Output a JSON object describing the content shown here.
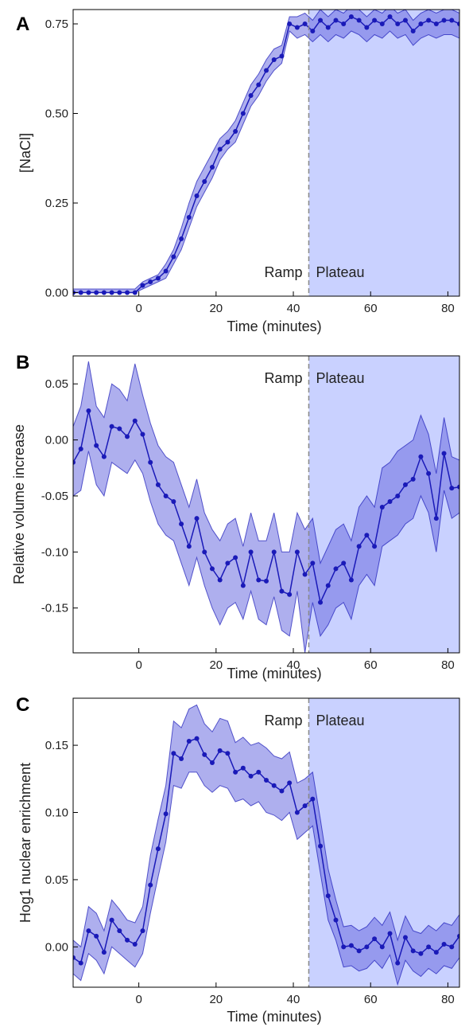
{
  "colors": {
    "line": "#1a1ab8",
    "band": "#6b6ee0",
    "plateau_shade": "#c9d1ff",
    "divider": "#888888"
  },
  "chart_data": [
    {
      "type": "line",
      "panel": "A",
      "xlabel": "Time (minutes)",
      "ylabel": "[NaCl]",
      "xlim": [
        -17,
        83
      ],
      "ylim": [
        -0.01,
        0.79
      ],
      "xticks": [
        0,
        20,
        40,
        60,
        80
      ],
      "xtick_labels": [
        "0",
        "20",
        "40",
        "60",
        "80"
      ],
      "yticks": [
        0,
        0.25,
        0.5,
        0.75
      ],
      "ytick_labels": [
        "0.00",
        "0.25",
        "0.50",
        "0.75"
      ],
      "plateau_start": 44,
      "regions": [
        "Ramp",
        "Plateau"
      ],
      "region_label_position": "bottom",
      "x": [
        -17,
        -15,
        -13,
        -11,
        -9,
        -7,
        -5,
        -3,
        -1,
        1,
        3,
        5,
        7,
        9,
        11,
        13,
        15,
        17,
        19,
        21,
        23,
        25,
        27,
        29,
        31,
        33,
        35,
        37,
        39,
        41,
        43,
        45,
        47,
        49,
        51,
        53,
        55,
        57,
        59,
        61,
        63,
        65,
        67,
        69,
        71,
        73,
        75,
        77,
        79,
        81,
        83
      ],
      "series": [
        {
          "mean": [
            0.0,
            0.0,
            0.0,
            0.0,
            0.0,
            0.0,
            0.0,
            0.0,
            0.0,
            0.02,
            0.03,
            0.04,
            0.06,
            0.1,
            0.15,
            0.21,
            0.27,
            0.31,
            0.35,
            0.4,
            0.42,
            0.45,
            0.5,
            0.55,
            0.58,
            0.62,
            0.65,
            0.66,
            0.75,
            0.74,
            0.75,
            0.73,
            0.76,
            0.74,
            0.76,
            0.75,
            0.77,
            0.76,
            0.74,
            0.76,
            0.75,
            0.77,
            0.75,
            0.76,
            0.73,
            0.75,
            0.76,
            0.75,
            0.76,
            0.76,
            0.75
          ],
          "lower": [
            0.0,
            0.0,
            0.0,
            0.0,
            0.0,
            0.0,
            0.0,
            0.0,
            0.0,
            0.01,
            0.02,
            0.03,
            0.04,
            0.08,
            0.12,
            0.18,
            0.24,
            0.28,
            0.32,
            0.37,
            0.4,
            0.42,
            0.47,
            0.52,
            0.55,
            0.59,
            0.62,
            0.64,
            0.73,
            0.71,
            0.72,
            0.7,
            0.72,
            0.7,
            0.72,
            0.71,
            0.73,
            0.72,
            0.7,
            0.72,
            0.71,
            0.73,
            0.71,
            0.72,
            0.69,
            0.71,
            0.72,
            0.71,
            0.72,
            0.72,
            0.71
          ],
          "upper": [
            0.01,
            0.01,
            0.01,
            0.01,
            0.01,
            0.01,
            0.01,
            0.01,
            0.01,
            0.03,
            0.04,
            0.05,
            0.08,
            0.12,
            0.18,
            0.25,
            0.31,
            0.35,
            0.39,
            0.43,
            0.45,
            0.48,
            0.53,
            0.58,
            0.61,
            0.65,
            0.68,
            0.69,
            0.77,
            0.77,
            0.78,
            0.76,
            0.79,
            0.77,
            0.79,
            0.78,
            0.8,
            0.79,
            0.77,
            0.79,
            0.78,
            0.8,
            0.78,
            0.79,
            0.76,
            0.78,
            0.79,
            0.78,
            0.79,
            0.79,
            0.78
          ]
        }
      ]
    },
    {
      "type": "line",
      "panel": "B",
      "xlabel": "Time (minutes)",
      "ylabel": "Relative volume increase",
      "xlim": [
        -17,
        83
      ],
      "ylim": [
        -0.19,
        0.075
      ],
      "xticks": [
        0,
        20,
        40,
        60,
        80
      ],
      "xtick_labels": [
        "0",
        "20",
        "40",
        "60",
        "80"
      ],
      "yticks": [
        0.05,
        0,
        -0.05,
        -0.1,
        -0.15
      ],
      "ytick_labels": [
        "0.05",
        "0.00",
        "-0.05",
        "-0.10",
        "-0.15"
      ],
      "plateau_start": 44,
      "regions": [
        "Ramp",
        "Plateau"
      ],
      "region_label_position": "top",
      "x": [
        -17,
        -15,
        -13,
        -11,
        -9,
        -7,
        -5,
        -3,
        -1,
        1,
        3,
        5,
        7,
        9,
        11,
        13,
        15,
        17,
        19,
        21,
        23,
        25,
        27,
        29,
        31,
        33,
        35,
        37,
        39,
        41,
        43,
        45,
        47,
        49,
        51,
        53,
        55,
        57,
        59,
        61,
        63,
        65,
        67,
        69,
        71,
        73,
        75,
        77,
        79,
        81,
        83
      ],
      "series": [
        {
          "mean": [
            -0.02,
            -0.008,
            0.026,
            -0.005,
            -0.015,
            0.012,
            0.01,
            0.003,
            0.017,
            0.005,
            -0.02,
            -0.04,
            -0.05,
            -0.055,
            -0.075,
            -0.095,
            -0.07,
            -0.1,
            -0.115,
            -0.125,
            -0.11,
            -0.105,
            -0.13,
            -0.1,
            -0.125,
            -0.126,
            -0.1,
            -0.135,
            -0.138,
            -0.1,
            -0.12,
            -0.11,
            -0.145,
            -0.13,
            -0.115,
            -0.11,
            -0.125,
            -0.095,
            -0.085,
            -0.095,
            -0.06,
            -0.055,
            -0.05,
            -0.04,
            -0.035,
            -0.015,
            -0.03,
            -0.07,
            -0.012,
            -0.043,
            -0.042
          ],
          "lower": [
            -0.05,
            -0.045,
            -0.01,
            -0.04,
            -0.05,
            -0.02,
            -0.025,
            -0.03,
            -0.018,
            -0.03,
            -0.055,
            -0.075,
            -0.085,
            -0.09,
            -0.11,
            -0.13,
            -0.105,
            -0.13,
            -0.15,
            -0.165,
            -0.15,
            -0.145,
            -0.16,
            -0.135,
            -0.16,
            -0.165,
            -0.14,
            -0.17,
            -0.175,
            -0.135,
            -0.19,
            -0.145,
            -0.175,
            -0.165,
            -0.15,
            -0.145,
            -0.16,
            -0.13,
            -0.12,
            -0.13,
            -0.095,
            -0.09,
            -0.085,
            -0.075,
            -0.07,
            -0.05,
            -0.065,
            -0.1,
            -0.045,
            -0.07,
            -0.065
          ],
          "upper": [
            0.012,
            0.03,
            0.07,
            0.03,
            0.02,
            0.05,
            0.045,
            0.035,
            0.068,
            0.04,
            0.015,
            -0.005,
            -0.015,
            -0.02,
            -0.04,
            -0.06,
            -0.035,
            -0.065,
            -0.08,
            -0.09,
            -0.075,
            -0.07,
            -0.095,
            -0.065,
            -0.09,
            -0.09,
            -0.065,
            -0.1,
            -0.1,
            -0.065,
            -0.08,
            -0.07,
            -0.11,
            -0.095,
            -0.08,
            -0.075,
            -0.09,
            -0.06,
            -0.05,
            -0.06,
            -0.025,
            -0.02,
            -0.01,
            -0.005,
            0.0,
            0.022,
            0.005,
            -0.03,
            0.02,
            -0.015,
            -0.018
          ]
        }
      ]
    },
    {
      "type": "line",
      "panel": "C",
      "xlabel": "Time (minutes)",
      "ylabel": "Hog1 nuclear enrichment",
      "xlim": [
        -17,
        83
      ],
      "ylim": [
        -0.03,
        0.185
      ],
      "xticks": [
        0,
        20,
        40,
        60,
        80
      ],
      "xtick_labels": [
        "0",
        "20",
        "40",
        "60",
        "80"
      ],
      "yticks": [
        0.15,
        0.1,
        0.05,
        0
      ],
      "ytick_labels": [
        "0.15",
        "0.10",
        "0.05",
        "0.00"
      ],
      "plateau_start": 44,
      "regions": [
        "Ramp",
        "Plateau"
      ],
      "region_label_position": "top",
      "x": [
        -17,
        -15,
        -13,
        -11,
        -9,
        -7,
        -5,
        -3,
        -1,
        1,
        3,
        5,
        7,
        9,
        11,
        13,
        15,
        17,
        19,
        21,
        23,
        25,
        27,
        29,
        31,
        33,
        35,
        37,
        39,
        41,
        43,
        45,
        47,
        49,
        51,
        53,
        55,
        57,
        59,
        61,
        63,
        65,
        67,
        69,
        71,
        73,
        75,
        77,
        79,
        81,
        83
      ],
      "series": [
        {
          "mean": [
            -0.008,
            -0.012,
            0.012,
            0.008,
            -0.004,
            0.02,
            0.012,
            0.005,
            0.002,
            0.012,
            0.046,
            0.073,
            0.099,
            0.144,
            0.14,
            0.153,
            0.155,
            0.143,
            0.137,
            0.146,
            0.144,
            0.13,
            0.133,
            0.127,
            0.13,
            0.124,
            0.12,
            0.116,
            0.122,
            0.1,
            0.105,
            0.11,
            0.075,
            0.038,
            0.02,
            0.0,
            0.001,
            -0.003,
            0.0,
            0.006,
            0.0,
            0.01,
            -0.012,
            0.007,
            -0.003,
            -0.005,
            0.0,
            -0.004,
            0.002,
            0.0,
            0.008
          ],
          "lower": [
            -0.02,
            -0.025,
            -0.005,
            -0.01,
            -0.02,
            0.0,
            -0.005,
            -0.01,
            -0.015,
            -0.005,
            0.025,
            0.052,
            0.078,
            0.12,
            0.118,
            0.13,
            0.13,
            0.12,
            0.115,
            0.12,
            0.118,
            0.108,
            0.11,
            0.105,
            0.108,
            0.1,
            0.098,
            0.094,
            0.1,
            0.08,
            0.085,
            0.09,
            0.055,
            0.02,
            0.005,
            -0.015,
            -0.014,
            -0.018,
            -0.016,
            -0.01,
            -0.016,
            -0.006,
            -0.028,
            -0.01,
            -0.018,
            -0.022,
            -0.016,
            -0.02,
            -0.014,
            -0.016,
            -0.008
          ],
          "upper": [
            0.005,
            0.0,
            0.03,
            0.025,
            0.012,
            0.035,
            0.028,
            0.02,
            0.018,
            0.03,
            0.068,
            0.095,
            0.12,
            0.168,
            0.163,
            0.177,
            0.18,
            0.166,
            0.16,
            0.17,
            0.168,
            0.152,
            0.156,
            0.15,
            0.152,
            0.148,
            0.142,
            0.14,
            0.145,
            0.122,
            0.125,
            0.13,
            0.095,
            0.058,
            0.035,
            0.015,
            0.016,
            0.012,
            0.015,
            0.022,
            0.016,
            0.026,
            0.005,
            0.023,
            0.012,
            0.01,
            0.016,
            0.012,
            0.018,
            0.016,
            0.024
          ]
        }
      ]
    }
  ]
}
